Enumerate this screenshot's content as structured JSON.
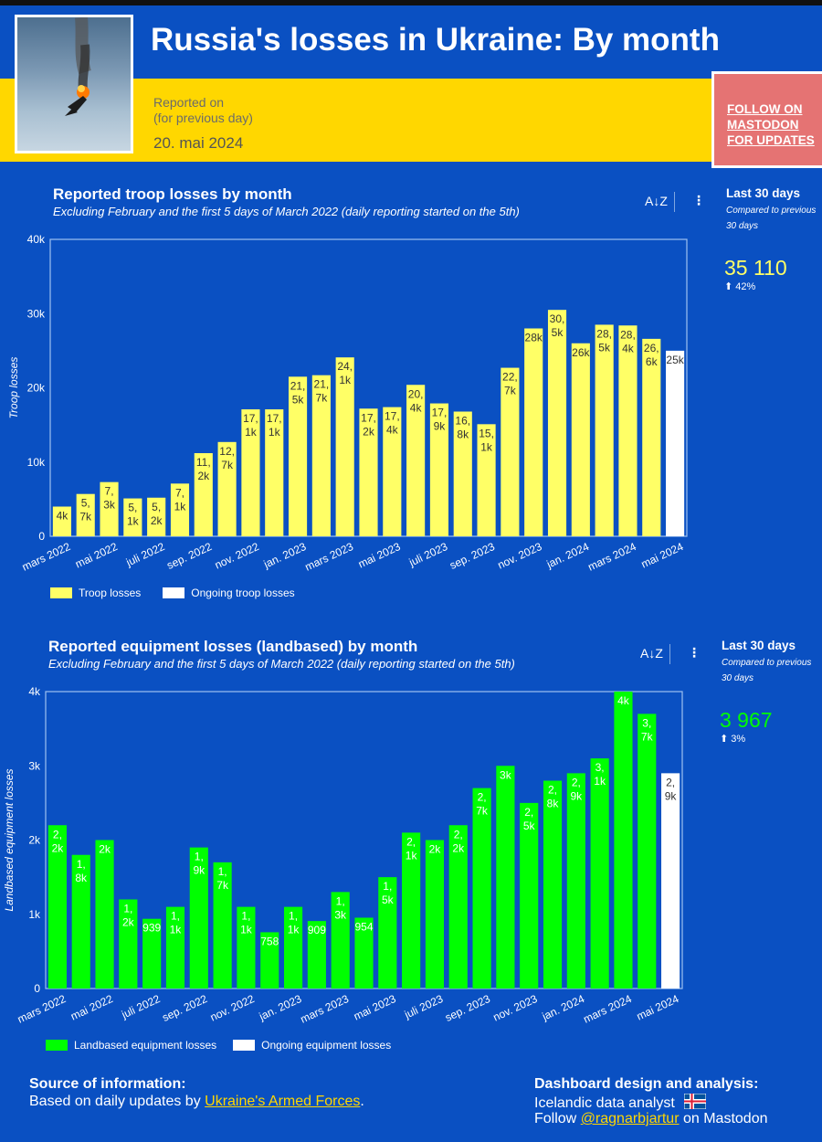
{
  "header": {
    "title": "Russia's losses in Ukraine:  By month",
    "reported_line1": "Reported on",
    "reported_line2": "(for previous day)",
    "reported_date": "20. mai 2024",
    "mastodon_button": "FOLLOW ON MASTODON FOR UPDATES"
  },
  "panels": {
    "troop": {
      "title": "Reported troop losses by month",
      "subtitle": "Excluding February and the first 5 days of March 2022 (daily reporting started on the 5th)",
      "side_title": "Last 30 days",
      "side_compare": "Compared to previous 30 days",
      "side_value": "35 110",
      "side_pct": "42%",
      "legend": [
        "Troop losses",
        "Ongoing troop losses"
      ]
    },
    "equipment": {
      "title": "Reported equipment losses (landbased) by month",
      "subtitle": "Excluding February and the first 5 days of March 2022 (daily reporting started on the 5th)",
      "side_title": "Last 30 days",
      "side_compare": "Compared to previous 30 days",
      "side_value": "3 967",
      "side_pct": "3%",
      "legend": [
        "Landbased equipment losses",
        "Ongoing equipment losses"
      ]
    }
  },
  "footer": {
    "source_heading": "Source of information:",
    "source_text": "Based on daily updates by",
    "source_link": "Ukraine's Armed Forces",
    "source_end": ".",
    "design_heading": "Dashboard design and analysis:",
    "design_line1": "Icelandic data analyst",
    "design_follow": "Follow",
    "design_handle": "@ragnarbjartur",
    "design_end": "on Mastodon"
  },
  "colors": {
    "troop": "#ffff66",
    "equipment": "#00ff00",
    "ongoing": "#ffffff",
    "background": "#0a50c2",
    "accent_yellow": "#ffd700"
  },
  "chart_data": [
    {
      "type": "bar",
      "ylabel": "Troop losses",
      "ylim": [
        0,
        40000
      ],
      "yticks": [
        "0",
        "10k",
        "20k",
        "30k",
        "40k"
      ],
      "categories": [
        "mars 2022",
        "apr 2022",
        "mai 2022",
        "jun 2022",
        "juli 2022",
        "aug 2022",
        "sep. 2022",
        "okt 2022",
        "nov. 2022",
        "des 2022",
        "jan. 2023",
        "feb 2023",
        "mars 2023",
        "apr 2023",
        "mai 2023",
        "jun 2023",
        "juli 2023",
        "aug 2023",
        "sep. 2023",
        "okt 2023",
        "nov. 2023",
        "des 2023",
        "jan. 2024",
        "feb 2024",
        "mars 2024",
        "apr 2024",
        "mai 2024"
      ],
      "tick_labels": [
        "mars 2022",
        "mai 2022",
        "juli 2022",
        "sep. 2022",
        "nov. 2022",
        "jan. 2023",
        "mars 2023",
        "mai 2023",
        "juli 2023",
        "sep. 2023",
        "nov. 2023",
        "jan. 2024",
        "mars 2024",
        "mai 2024"
      ],
      "values": [
        4000,
        5700,
        7300,
        5100,
        5200,
        7100,
        11200,
        12700,
        17100,
        17100,
        21500,
        21700,
        24100,
        17200,
        17400,
        20400,
        17900,
        16800,
        15100,
        22700,
        28000,
        30500,
        26000,
        28500,
        28400,
        26600,
        25000
      ],
      "labels": [
        "4k",
        "5,7k",
        "7,3k",
        "5,1k",
        "5,2k",
        "7,1k",
        "11,2k",
        "12,7k",
        "17,1k",
        "17,1k",
        "21,5k",
        "21,7k",
        "24,1k",
        "17,2k",
        "17,4k",
        "20,4k",
        "17,9k",
        "16,8k",
        "15,1k",
        "22,7k",
        "28k",
        "30,5k",
        "26k",
        "28,5k",
        "28,4k",
        "26,6k",
        "25k"
      ],
      "ongoing_index": 26,
      "legend": "bottom-left",
      "grid": false
    },
    {
      "type": "bar",
      "ylabel": "Landbased equipment losses",
      "ylim": [
        0,
        4000
      ],
      "yticks": [
        "0",
        "1k",
        "2k",
        "3k",
        "4k"
      ],
      "categories": [
        "mars 2022",
        "apr 2022",
        "mai 2022",
        "jun 2022",
        "juli 2022",
        "aug 2022",
        "sep. 2022",
        "okt 2022",
        "nov. 2022",
        "des 2022",
        "jan. 2023",
        "feb 2023",
        "mars 2023",
        "apr 2023",
        "mai 2023",
        "jun 2023",
        "juli 2023",
        "aug 2023",
        "sep. 2023",
        "okt 2023",
        "nov. 2023",
        "des 2023",
        "jan. 2024",
        "feb 2024",
        "mars 2024",
        "apr 2024",
        "mai 2024"
      ],
      "tick_labels": [
        "mars 2022",
        "mai 2022",
        "juli 2022",
        "sep. 2022",
        "nov. 2022",
        "jan. 2023",
        "mars 2023",
        "mai 2023",
        "juli 2023",
        "sep. 2023",
        "nov. 2023",
        "jan. 2024",
        "mars 2024",
        "mai 2024"
      ],
      "values": [
        2200,
        1800,
        2000,
        1200,
        939,
        1100,
        1900,
        1700,
        1100,
        758,
        1100,
        909,
        1300,
        954,
        1500,
        2100,
        2000,
        2200,
        2700,
        3000,
        2500,
        2800,
        2900,
        3100,
        4000,
        3700,
        2900
      ],
      "labels": [
        "2,2k",
        "1,8k",
        "2k",
        "1,2k",
        "939",
        "1,1k",
        "1,9k",
        "1,7k",
        "1,1k",
        "758",
        "1,1k",
        "909",
        "1,3k",
        "954",
        "1,5k",
        "2,1k",
        "2k",
        "2,2k",
        "2,7k",
        "3k",
        "2,5k",
        "2,8k",
        "2,9k",
        "3,1k",
        "4k",
        "3,7k",
        "2,9k"
      ],
      "ongoing_index": 26,
      "legend": "bottom-left",
      "grid": false
    }
  ]
}
